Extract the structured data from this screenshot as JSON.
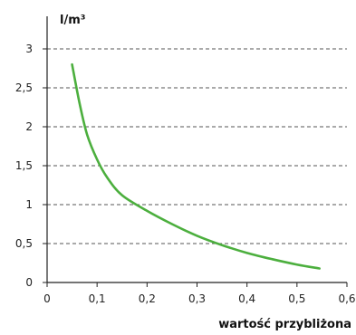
{
  "chart_data": {
    "type": "line",
    "title": "",
    "ylabel": "l/m³",
    "xlabel": "wartość przybliżona",
    "xlim": [
      0,
      0.6
    ],
    "ylim": [
      0,
      3
    ],
    "x_ticks": [
      0,
      0.1,
      0.2,
      0.3,
      0.4,
      0.5,
      0.6
    ],
    "x_tick_labels": [
      "0",
      "0,1",
      "0,2",
      "0,3",
      "0,4",
      "0,5",
      "0,6"
    ],
    "y_ticks": [
      0,
      0.5,
      1,
      1.5,
      2,
      2.5,
      3
    ],
    "y_tick_labels": [
      "0",
      "0,5",
      "1",
      "1,5",
      "2",
      "2,5",
      "3"
    ],
    "grid": "horizontal-dashed",
    "series": [
      {
        "color": "#4caf3e",
        "x": [
          0.05,
          0.065,
          0.08,
          0.1,
          0.12,
          0.15,
          0.2,
          0.25,
          0.3,
          0.35,
          0.4,
          0.45,
          0.5,
          0.545
        ],
        "y": [
          2.8,
          2.3,
          1.9,
          1.58,
          1.35,
          1.12,
          0.92,
          0.75,
          0.6,
          0.48,
          0.38,
          0.3,
          0.23,
          0.18
        ]
      }
    ]
  }
}
